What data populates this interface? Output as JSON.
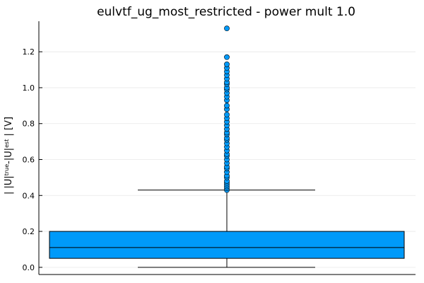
{
  "chart_data": {
    "type": "box",
    "title": "eulvtf_ug_most_restricted - power mult 1.0",
    "ylabel": {
      "prefix": "| |U|",
      "sup1": "true",
      "mid": "-|U|",
      "sup2": "est",
      "suffix": " | [V]"
    },
    "xlabel": "",
    "ylim": [
      -0.04,
      1.37
    ],
    "yticks": [
      0.0,
      0.2,
      0.4,
      0.6,
      0.8,
      1.0,
      1.2
    ],
    "ytick_labels": [
      "0.0",
      "0.2",
      "0.4",
      "0.6",
      "0.8",
      "1.0",
      "1.2"
    ],
    "grid": true,
    "legend": "none",
    "box": {
      "whisker_low": 0.0,
      "q1": 0.05,
      "median": 0.11,
      "q3": 0.2,
      "whisker_high": 0.43
    },
    "outliers": [
      0.43,
      0.44,
      0.45,
      0.46,
      0.47,
      0.48,
      0.5,
      0.51,
      0.53,
      0.55,
      0.56,
      0.58,
      0.6,
      0.62,
      0.63,
      0.65,
      0.67,
      0.69,
      0.71,
      0.72,
      0.74,
      0.75,
      0.77,
      0.79,
      0.81,
      0.83,
      0.85,
      0.88,
      0.9,
      0.93,
      0.95,
      0.97,
      0.99,
      1.0,
      1.02,
      1.03,
      1.05,
      1.07,
      1.09,
      1.11,
      1.13,
      1.17,
      1.33
    ],
    "colors": {
      "box": "#009af9",
      "line": "#000000",
      "grid": "#e8e8e8",
      "axis": "#000000"
    }
  }
}
